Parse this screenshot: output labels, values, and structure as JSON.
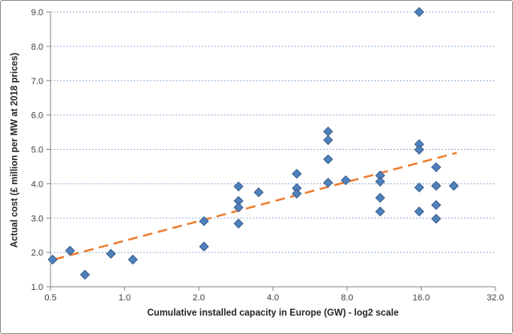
{
  "chart_data": {
    "type": "scatter",
    "title": "",
    "xlabel": "Cumulative installed capacity in Europe (GW) - log2 scale",
    "ylabel": "Actual cost  (£ million per MW at 2018 prices)",
    "x_scale": "log2",
    "xlim": [
      0.5,
      32
    ],
    "ylim": [
      1,
      9
    ],
    "x_ticks": [
      0.5,
      1,
      2,
      4,
      8,
      16,
      32
    ],
    "x_tick_labels": [
      "0.5",
      "1.0",
      "2.0",
      "4.0",
      "8.0",
      "16.0",
      "32.0"
    ],
    "y_ticks": [
      1,
      2,
      3,
      4,
      5,
      6,
      7,
      8,
      9
    ],
    "y_tick_labels": [
      "1.0",
      "2.0",
      "3.0",
      "4.0",
      "5.0",
      "6.0",
      "7.0",
      "8.0",
      "9.0"
    ],
    "grid": "horizontal-dotted",
    "legend": "none",
    "points": [
      [
        0.51,
        1.79
      ],
      [
        0.6,
        2.05
      ],
      [
        0.69,
        1.35
      ],
      [
        0.88,
        1.96
      ],
      [
        1.08,
        1.79
      ],
      [
        2.1,
        2.91
      ],
      [
        2.1,
        2.17
      ],
      [
        2.9,
        3.92
      ],
      [
        2.9,
        3.5
      ],
      [
        2.9,
        3.31
      ],
      [
        2.9,
        2.84
      ],
      [
        3.5,
        3.75
      ],
      [
        5.0,
        4.29
      ],
      [
        5.0,
        3.87
      ],
      [
        5.0,
        3.71
      ],
      [
        6.7,
        5.52
      ],
      [
        6.7,
        5.27
      ],
      [
        6.7,
        4.71
      ],
      [
        6.7,
        4.03
      ],
      [
        7.9,
        4.1
      ],
      [
        10.9,
        4.24
      ],
      [
        10.9,
        4.06
      ],
      [
        10.9,
        3.59
      ],
      [
        10.9,
        3.19
      ],
      [
        15.7,
        9.0
      ],
      [
        15.7,
        5.15
      ],
      [
        15.7,
        4.99
      ],
      [
        15.7,
        3.89
      ],
      [
        15.7,
        3.19
      ],
      [
        18.4,
        4.48
      ],
      [
        18.4,
        3.94
      ],
      [
        18.4,
        3.38
      ],
      [
        18.4,
        2.98
      ],
      [
        21.7,
        3.94
      ]
    ],
    "trendline": {
      "style": "dashed",
      "x_start": 0.52,
      "y_start": 1.8,
      "x_end": 22.3,
      "y_end": 4.9
    },
    "colors": {
      "marker": "#4F81BD",
      "marker_border": "#385D8A",
      "gridline": "#95B3D7",
      "axis": "#868686",
      "tick_text": "#3f3f3f",
      "trend": "#ED7D31",
      "chart_border": "#8d8d8d",
      "background": "#FFFFFF"
    }
  }
}
